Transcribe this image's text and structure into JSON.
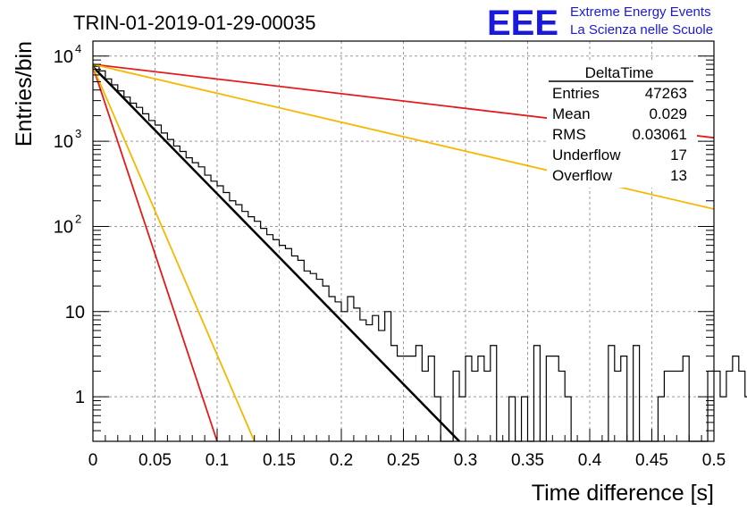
{
  "chart_data": {
    "type": "line",
    "title": "TRIN-01-2019-01-29-00035",
    "xlabel": "Time difference [s]",
    "ylabel": "Entries/bin",
    "xlim": [
      0,
      0.5
    ],
    "ylim": [
      0.3,
      15000
    ],
    "y_scale": "log",
    "grid": true,
    "x_ticks": [
      "0",
      "0.05",
      "0.1",
      "0.15",
      "0.2",
      "0.25",
      "0.3",
      "0.35",
      "0.4",
      "0.45",
      "0.5"
    ],
    "x_tick_values": [
      0,
      0.05,
      0.1,
      0.15,
      0.2,
      0.25,
      0.3,
      0.35,
      0.4,
      0.45,
      0.5
    ],
    "y_ticks": [
      {
        "value": 1,
        "base": "1",
        "exp": ""
      },
      {
        "value": 10,
        "base": "10",
        "exp": ""
      },
      {
        "value": 100,
        "base": "10",
        "exp": "2"
      },
      {
        "value": 1000,
        "base": "10",
        "exp": "3"
      },
      {
        "value": 10000,
        "base": "10",
        "exp": "4"
      }
    ],
    "histogram": {
      "bin_width": 0.005,
      "values": [
        7600,
        6700,
        5400,
        4600,
        3900,
        3300,
        2800,
        2500,
        2100,
        1750,
        1550,
        1250,
        1050,
        880,
        760,
        640,
        560,
        500,
        400,
        340,
        300,
        250,
        200,
        180,
        150,
        130,
        115,
        95,
        80,
        70,
        60,
        55,
        45,
        40,
        30,
        28,
        24,
        20,
        15,
        13,
        10,
        15,
        11,
        8,
        7,
        9,
        6,
        10,
        4,
        3,
        3,
        3,
        4,
        2,
        3,
        1,
        0,
        0,
        2,
        1,
        3,
        2,
        3,
        2,
        4,
        0,
        0,
        1,
        0,
        1,
        0,
        4,
        0,
        3,
        3,
        2,
        1,
        0,
        0,
        0,
        0,
        0,
        0,
        4,
        2,
        3,
        0,
        4,
        0,
        0,
        0,
        1,
        2,
        2,
        2,
        3,
        0,
        0,
        0,
        2,
        2,
        1,
        2,
        3,
        2,
        1,
        0,
        0,
        1,
        0,
        2,
        0,
        4,
        3,
        1,
        3,
        2,
        3,
        2,
        1,
        3,
        4,
        2,
        1,
        0,
        0,
        4,
        2,
        0,
        2,
        3,
        0,
        1,
        1,
        0,
        0,
        2,
        1,
        0,
        4,
        3,
        1,
        2,
        0,
        0,
        2,
        0,
        2,
        2,
        0,
        2,
        4,
        3,
        1,
        1,
        0,
        1,
        1,
        0,
        1,
        3,
        1,
        3,
        0,
        3,
        2,
        0,
        0,
        1,
        0,
        0,
        1,
        0,
        1,
        2,
        0,
        2,
        0,
        3,
        1,
        1,
        0,
        2,
        0,
        2,
        1,
        3,
        1,
        0,
        0,
        0,
        0,
        0,
        1,
        1,
        0
      ],
      "color": "#000000"
    },
    "series": [
      {
        "x": [
          0,
          0.295
        ],
        "y": [
          7500,
          0.3
        ],
        "color": "#000000",
        "width": 2.5
      },
      {
        "x": [
          0,
          0.1
        ],
        "y": [
          7500,
          0.3
        ],
        "color": "#e31a1c",
        "width": 1.8
      },
      {
        "x": [
          0,
          0.13
        ],
        "y": [
          7500,
          0.3
        ],
        "color": "#f5b800",
        "width": 1.8
      },
      {
        "x": [
          0,
          0.5
        ],
        "y": [
          8000,
          1100
        ],
        "color": "#e31a1c",
        "width": 1.8
      },
      {
        "x": [
          0,
          0.5
        ],
        "y": [
          8000,
          160
        ],
        "color": "#f5b800",
        "width": 1.8
      }
    ],
    "stats": {
      "title": "DeltaTime",
      "rows": [
        {
          "label": "Entries",
          "value": "47263"
        },
        {
          "label": "Mean",
          "value": "0.029"
        },
        {
          "label": "RMS",
          "value": "0.03061"
        },
        {
          "label": "Underflow",
          "value": "17"
        },
        {
          "label": "Overflow",
          "value": "13"
        }
      ]
    }
  },
  "logo": {
    "mark": "EEE",
    "line1": "Extreme Energy Events",
    "line2": "La Scienza nelle Scuole",
    "color": "#1a1adc"
  }
}
